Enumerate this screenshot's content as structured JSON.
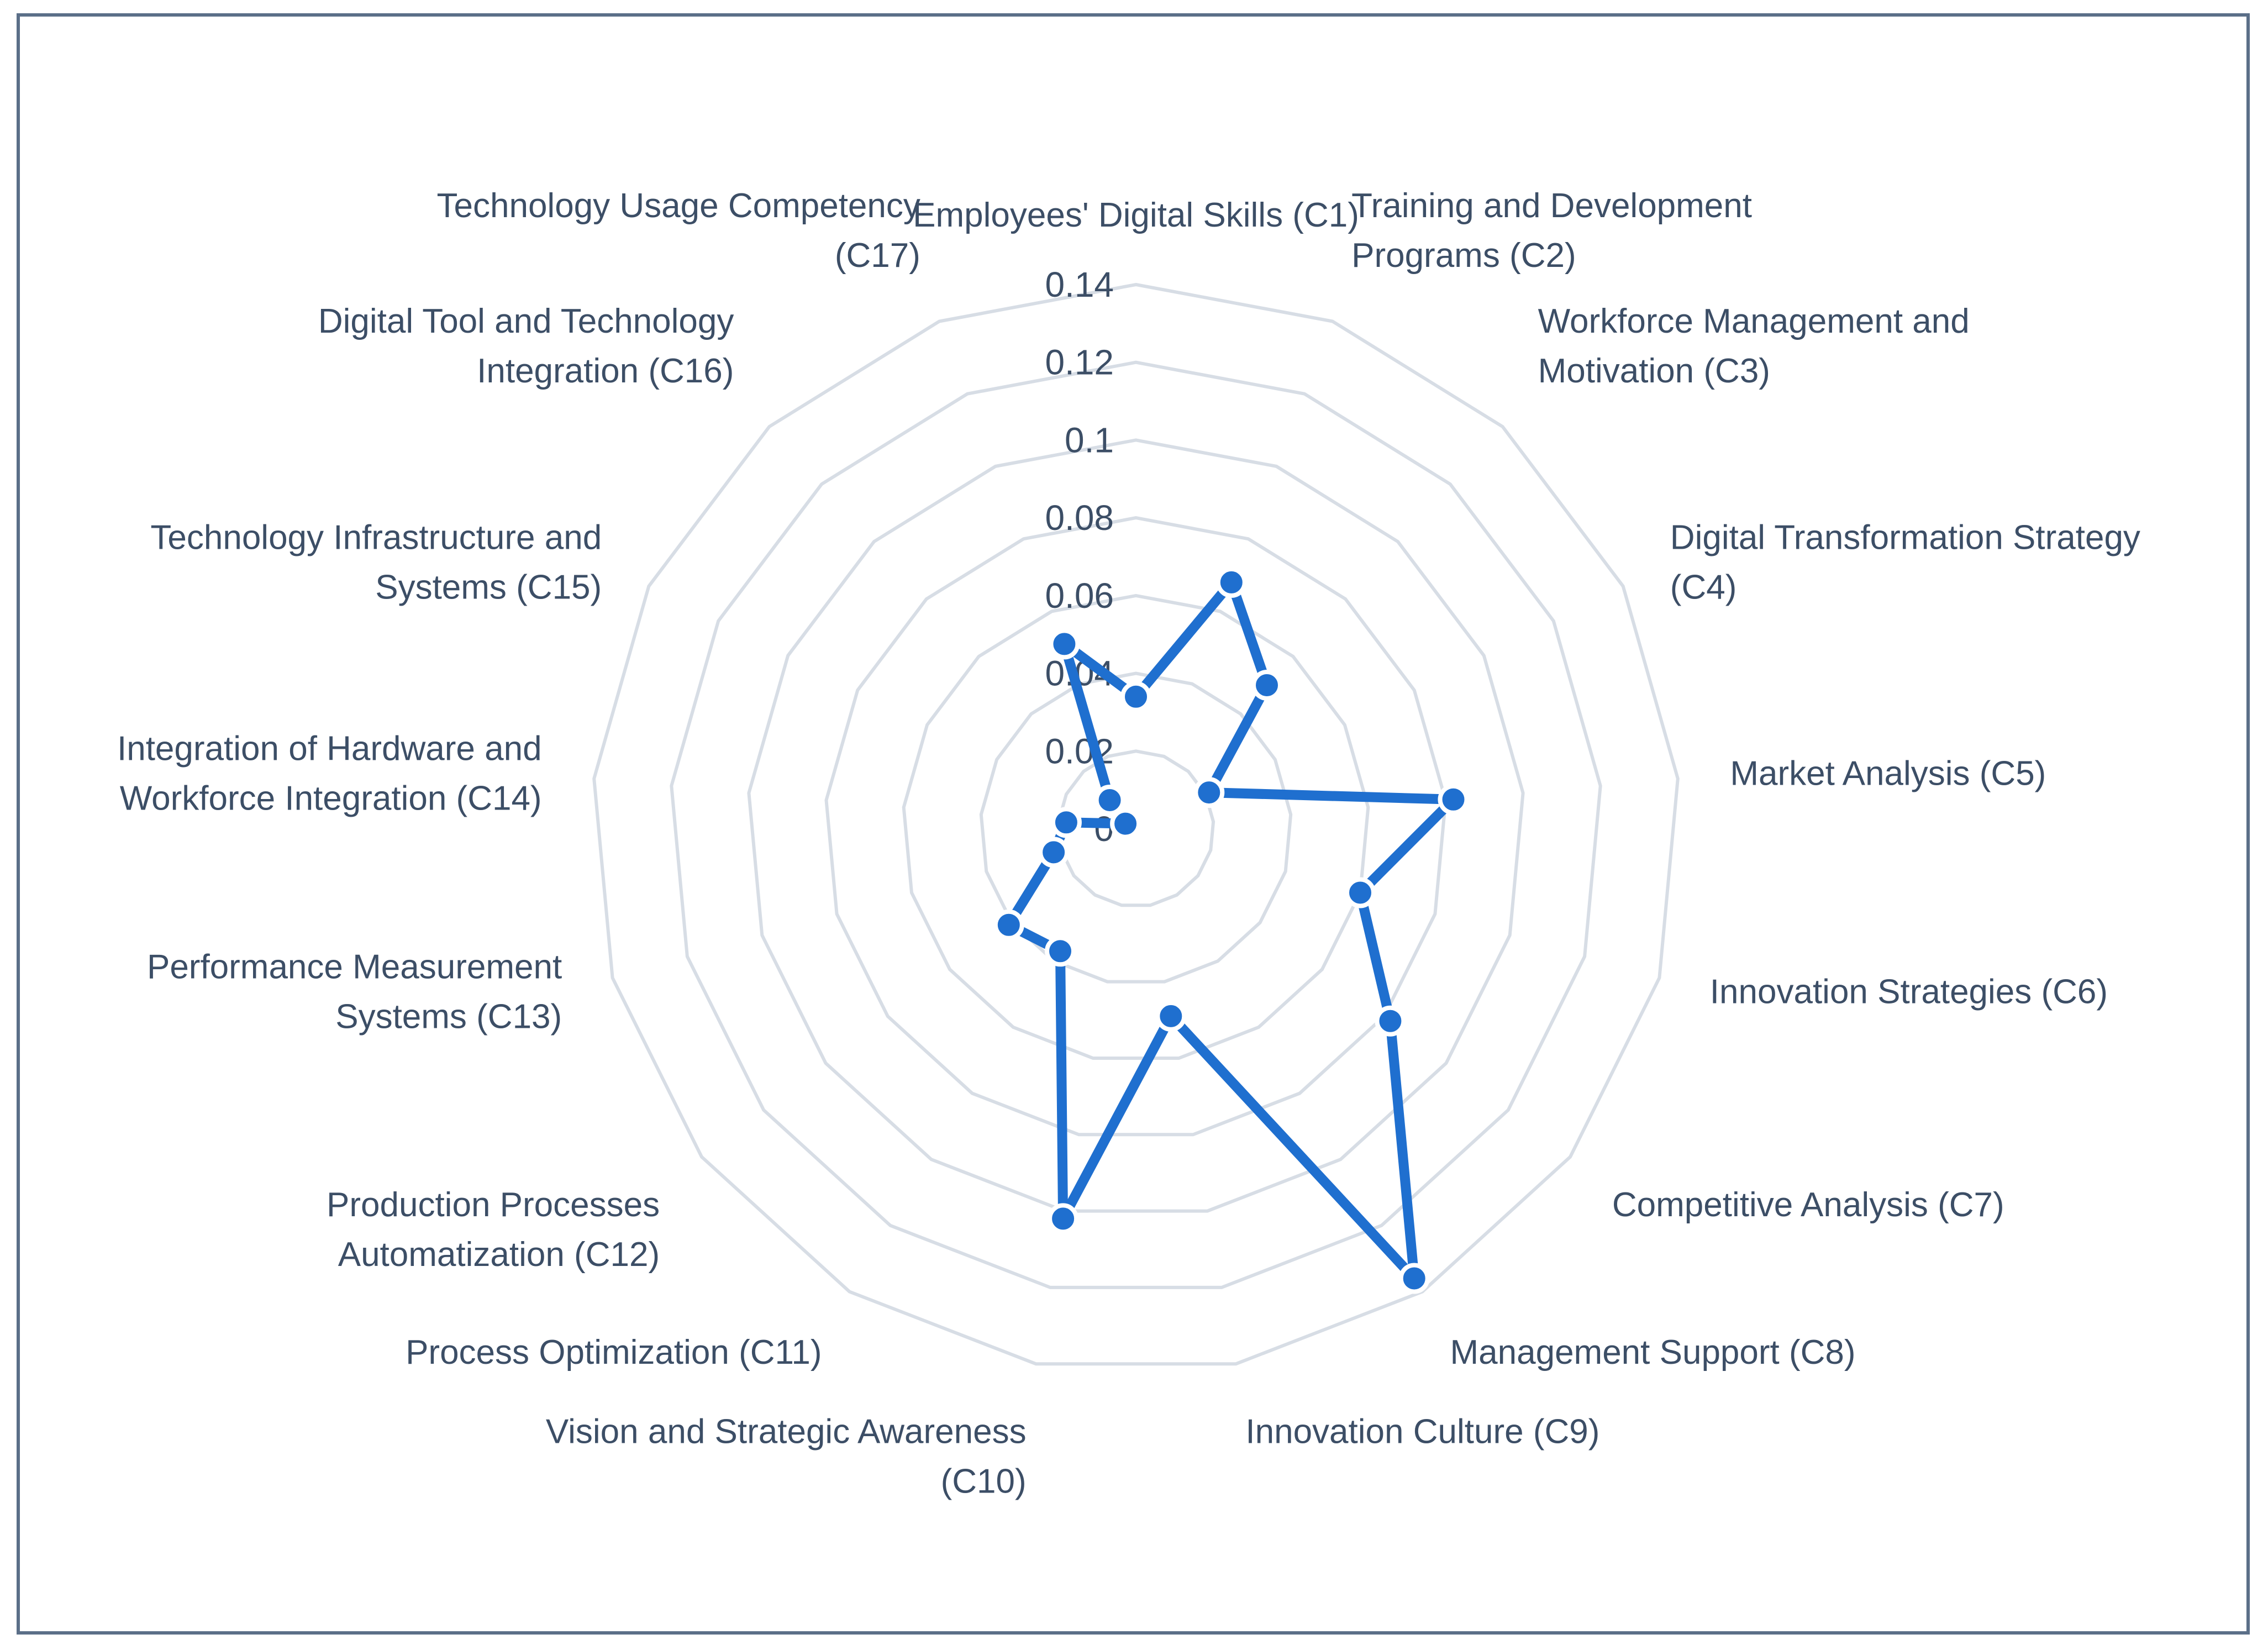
{
  "chart_data": {
    "type": "radar",
    "title": "",
    "categories": [
      "Employees' Digital Skills (C1)",
      "Training and Development Programs (C2)",
      "Workforce Management and Motivation (C3)",
      "Digital Transformation Strategy (C4)",
      "Market Analysis (C5)",
      "Innovation Strategies (C6)",
      "Competitive Analysis (C7)",
      "Management Support (C8)",
      "Innovation Culture (C9)",
      "Vision and Strategic Awareness (C10)",
      "Process Optimization (C11)",
      "Production Processes Automatization (C12)",
      "Performance Measurement Systems (C13)",
      "Integration of Hardware and Workforce Integration (C14)",
      "Technology Infrastructure and Systems (C15)",
      "Digital Tool and Technology Integration (C16)",
      "Technology Usage Competency (C17)"
    ],
    "category_lines": [
      [
        "Employees' Digital Skills (C1)"
      ],
      [
        "Training and Development",
        "Programs (C2)"
      ],
      [
        "Workforce Management and",
        "Motivation (C3)"
      ],
      [
        "Digital Transformation Strategy",
        "(C4)"
      ],
      [
        "Market Analysis (C5)"
      ],
      [
        "Innovation Strategies (C6)"
      ],
      [
        "Competitive Analysis (C7)"
      ],
      [
        "Management Support (C8)"
      ],
      [
        "Innovation Culture (C9)"
      ],
      [
        "Vision and Strategic Awareness",
        "(C10)"
      ],
      [
        "Process Optimization (C11)"
      ],
      [
        "Production Processes",
        "Automatization (C12)"
      ],
      [
        "Performance Measurement",
        "Systems (C13)"
      ],
      [
        "Integration of Hardware and",
        "Workforce Integration (C14)"
      ],
      [
        "Technology Infrastructure and",
        "Systems (C15)"
      ],
      [
        "Digital Tool and Technology",
        "Integration (C16)"
      ],
      [
        "Technology Usage Competency",
        "(C17)"
      ]
    ],
    "series": [
      {
        "values": [
          0.034,
          0.068,
          0.05,
          0.021,
          0.082,
          0.06,
          0.082,
          0.136,
          0.049,
          0.102,
          0.037,
          0.041,
          0.022,
          0.018,
          0.003,
          0.01,
          0.051
        ],
        "color": "#1f6fcf"
      }
    ],
    "rlim": [
      0,
      0.14
    ],
    "ticks": [
      "0",
      "0.02",
      "0.04",
      "0.06",
      "0.08",
      "0.1",
      "0.12",
      "0.14"
    ],
    "grid": true,
    "legend": "none",
    "colors": {
      "grid": "#d7dde5",
      "text": "#3c4e66",
      "frame": "#5b6f88",
      "marker_edge": "#ffffff"
    }
  }
}
